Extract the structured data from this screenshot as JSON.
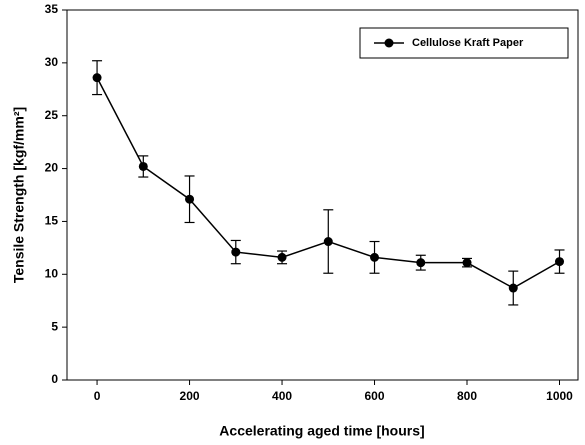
{
  "chart_data": {
    "type": "line",
    "x_label": "Accelerating aged time [hours]",
    "y_label": "Tensile Strength [kgf/mm²]",
    "x": [
      0,
      100,
      200,
      300,
      400,
      500,
      600,
      700,
      800,
      900,
      1000
    ],
    "series": [
      {
        "name": "Cellulose Kraft Paper",
        "color": "#000000",
        "values": [
          28.6,
          20.2,
          17.1,
          12.1,
          11.6,
          13.1,
          11.6,
          11.1,
          11.1,
          8.7,
          11.2
        ],
        "errors": [
          1.6,
          1.0,
          2.2,
          1.1,
          0.6,
          3.0,
          1.5,
          0.7,
          0.4,
          1.6,
          1.1
        ]
      }
    ],
    "xlim": [
      -65,
      1040
    ],
    "xticks": [
      0,
      200,
      400,
      600,
      800,
      1000
    ],
    "ylim": [
      0,
      35
    ],
    "yticks": [
      0,
      5,
      10,
      15,
      20,
      25,
      30,
      35
    ],
    "legend": "upper right"
  }
}
